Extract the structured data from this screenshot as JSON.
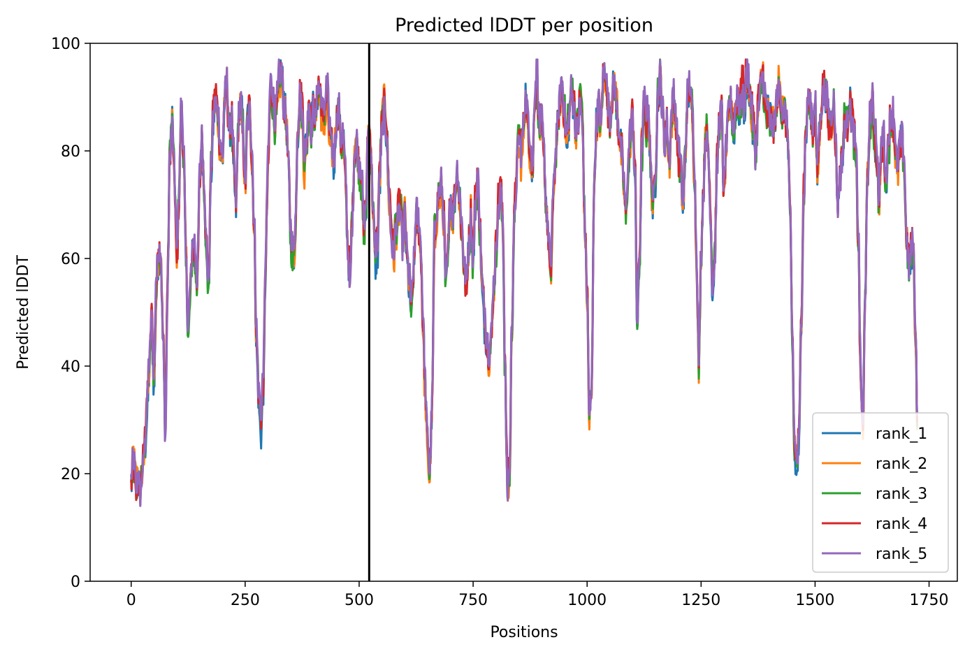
{
  "chart_data": {
    "type": "line",
    "title": "Predicted lDDT per position",
    "xlabel": "Positions",
    "ylabel": "Predicted lDDT",
    "xlim": [
      -90,
      1812
    ],
    "ylim": [
      0,
      100
    ],
    "xticks": [
      0,
      250,
      500,
      750,
      1000,
      1250,
      1500,
      1750
    ],
    "yticks": [
      0,
      20,
      40,
      60,
      80,
      100
    ],
    "grid": false,
    "legend_position": "lower-right",
    "chain_break_x": 522,
    "n_positions": 1725,
    "profile": {
      "x": [
        0,
        5,
        10,
        15,
        20,
        25,
        30,
        35,
        40,
        45,
        50,
        55,
        60,
        65,
        70,
        75,
        80,
        85,
        90,
        95,
        100,
        105,
        110,
        115,
        120,
        125,
        130,
        135,
        140,
        145,
        150,
        155,
        160,
        165,
        170,
        175,
        180,
        185,
        190,
        195,
        200,
        205,
        210,
        215,
        220,
        225,
        230,
        235,
        240,
        245,
        250,
        255,
        260,
        265,
        270,
        275,
        280,
        285,
        290,
        295,
        300,
        305,
        310,
        315,
        320,
        325,
        330,
        335,
        340,
        345,
        350,
        355,
        360,
        365,
        370,
        375,
        380,
        385,
        390,
        395,
        400,
        405,
        410,
        415,
        420,
        425,
        430,
        435,
        440,
        445,
        450,
        455,
        460,
        465,
        470,
        475,
        480,
        485,
        490,
        495,
        500,
        505,
        510,
        515,
        520,
        525,
        530,
        535,
        540,
        545,
        550,
        555,
        560,
        565,
        570,
        575,
        580,
        585,
        590,
        595,
        600,
        605,
        610,
        615,
        620,
        625,
        630,
        635,
        640,
        645,
        650,
        655,
        660,
        665,
        670,
        675,
        680,
        685,
        690,
        695,
        700,
        705,
        710,
        715,
        720,
        725,
        730,
        735,
        740,
        745,
        750,
        755,
        760,
        765,
        770,
        775,
        780,
        785,
        790,
        795,
        800,
        805,
        810,
        815,
        820,
        825,
        830,
        835,
        840,
        845,
        850,
        855,
        860,
        865,
        870,
        875,
        880,
        885,
        890,
        895,
        900,
        905,
        910,
        915,
        920,
        925,
        930,
        935,
        940,
        945,
        950,
        955,
        960,
        965,
        970,
        975,
        980,
        985,
        990,
        995,
        1000,
        1005,
        1010,
        1015,
        1020,
        1025,
        1030,
        1035,
        1040,
        1045,
        1050,
        1055,
        1060,
        1065,
        1070,
        1075,
        1080,
        1085,
        1090,
        1095,
        1100,
        1105,
        1110,
        1115,
        1120,
        1125,
        1130,
        1135,
        1140,
        1145,
        1150,
        1155,
        1160,
        1165,
        1170,
        1175,
        1180,
        1185,
        1190,
        1195,
        1200,
        1205,
        1210,
        1215,
        1220,
        1225,
        1230,
        1235,
        1240,
        1245,
        1250,
        1255,
        1260,
        1265,
        1270,
        1275,
        1280,
        1285,
        1290,
        1295,
        1300,
        1305,
        1310,
        1315,
        1320,
        1325,
        1330,
        1335,
        1340,
        1345,
        1350,
        1355,
        1360,
        1365,
        1370,
        1375,
        1380,
        1385,
        1390,
        1395,
        1400,
        1405,
        1410,
        1415,
        1420,
        1425,
        1430,
        1435,
        1440,
        1445,
        1450,
        1455,
        1460,
        1465,
        1470,
        1475,
        1480,
        1485,
        1490,
        1495,
        1500,
        1505,
        1510,
        1515,
        1520,
        1525,
        1530,
        1535,
        1540,
        1545,
        1550,
        1555,
        1560,
        1565,
        1570,
        1575,
        1580,
        1585,
        1590,
        1595,
        1600,
        1605,
        1610,
        1615,
        1620,
        1625,
        1630,
        1635,
        1640,
        1645,
        1650,
        1655,
        1660,
        1665,
        1670,
        1675,
        1680,
        1685,
        1690,
        1695,
        1700,
        1705,
        1710,
        1715,
        1720,
        1725
      ],
      "y": [
        18.0,
        22.0,
        17.0,
        19.0,
        17.0,
        21.0,
        25.0,
        33.0,
        40.0,
        48.0,
        38.0,
        55.0,
        62.0,
        60.0,
        45.0,
        28.0,
        55.0,
        80.0,
        85.0,
        75.0,
        60.0,
        72.0,
        88.0,
        80.0,
        60.0,
        48.0,
        55.0,
        62.0,
        60.0,
        55.0,
        74.0,
        82.0,
        74.0,
        62.0,
        55.0,
        76.0,
        86.0,
        90.0,
        86.0,
        81.0,
        78.0,
        90.0,
        92.0,
        84.0,
        86.0,
        77.0,
        70.0,
        85.0,
        90.0,
        85.0,
        74.0,
        86.0,
        88.0,
        78.0,
        65.0,
        45.0,
        35.0,
        30.0,
        38.0,
        60.0,
        78.0,
        92.0,
        90.0,
        85.0,
        88.0,
        93.0,
        94.0,
        88.0,
        86.0,
        78.0,
        65.0,
        60.0,
        65.0,
        84.0,
        90.0,
        88.0,
        78.0,
        82.0,
        90.0,
        85.0,
        88.0,
        86.0,
        92.0,
        90.0,
        85.0,
        88.0,
        91.0,
        84.0,
        80.0,
        78.0,
        85.0,
        88.0,
        80.0,
        82.0,
        75.0,
        62.0,
        56.0,
        68.0,
        80.0,
        82.0,
        78.0,
        76.0,
        65.0,
        70.0,
        84.0,
        82.0,
        70.0,
        60.0,
        62.0,
        75.0,
        85.0,
        88.0,
        84.0,
        72.0,
        66.0,
        60.0,
        65.0,
        68.0,
        70.0,
        64.0,
        68.0,
        60.0,
        55.0,
        50.0,
        58.0,
        68.0,
        66.0,
        62.0,
        48.0,
        35.0,
        25.0,
        20.0,
        32.0,
        62.0,
        68.0,
        72.0,
        74.0,
        68.0,
        55.0,
        60.0,
        70.0,
        68.0,
        72.0,
        76.0,
        70.0,
        64.0,
        58.0,
        54.0,
        62.0,
        68.0,
        60.0,
        70.0,
        74.0,
        65.0,
        55.0,
        50.0,
        45.0,
        42.0,
        44.0,
        55.0,
        62.0,
        70.0,
        72.0,
        67.0,
        40.0,
        18.0,
        20.0,
        48.0,
        66.0,
        75.0,
        82.0,
        80.0,
        84.0,
        90.0,
        86.0,
        80.0,
        76.0,
        90.0,
        92.0,
        84.0,
        86.0,
        80.0,
        70.0,
        64.0,
        56.0,
        70.0,
        78.0,
        85.0,
        90.0,
        93.0,
        88.0,
        82.0,
        86.0,
        92.0,
        90.0,
        84.0,
        85.0,
        90.0,
        84.0,
        66.0,
        52.0,
        30.0,
        36.0,
        72.0,
        85.0,
        88.0,
        84.0,
        92.0,
        94.0,
        88.0,
        85.0,
        90.0,
        93.0,
        88.0,
        84.0,
        80.0,
        74.0,
        68.0,
        76.0,
        82.0,
        86.0,
        76.0,
        50.0,
        60.0,
        80.0,
        88.0,
        85.0,
        86.0,
        76.0,
        70.0,
        76.0,
        90.0,
        94.0,
        88.0,
        80.0,
        84.0,
        78.0,
        86.0,
        90.0,
        85.0,
        80.0,
        76.0,
        70.0,
        78.0,
        90.0,
        92.0,
        88.0,
        78.0,
        60.0,
        40.0,
        60.0,
        72.0,
        84.0,
        80.0,
        70.0,
        56.0,
        60.0,
        78.0,
        86.0,
        88.0,
        72.0,
        80.0,
        86.0,
        90.0,
        84.0,
        86.0,
        90.0,
        88.0,
        92.0,
        90.0,
        94.0,
        93.0,
        88.0,
        84.0,
        80.0,
        88.0,
        92.0,
        95.0,
        90.0,
        88.0,
        86.0,
        86.0,
        84.0,
        88.0,
        92.0,
        90.0,
        88.0,
        86.0,
        84.0,
        70.0,
        45.0,
        25.0,
        22.0,
        28.0,
        50.0,
        72.0,
        84.0,
        90.0,
        88.0,
        84.0,
        88.0,
        76.0,
        84.0,
        90.0,
        92.0,
        90.0,
        86.0,
        84.0,
        88.0,
        82.0,
        70.0,
        76.0,
        80.0,
        86.0,
        85.0,
        90.0,
        88.0,
        84.0,
        78.0,
        64.0,
        38.0,
        28.0,
        55.0,
        75.0,
        86.0,
        88.0,
        84.0,
        80.0,
        72.0,
        80.0,
        84.0,
        75.0,
        80.0,
        84.0,
        86.0,
        82.0,
        76.0,
        80.0,
        82.0,
        78.0,
        65.0,
        58.0,
        60.0,
        64.0,
        48.0,
        28.0
      ]
    },
    "series": [
      {
        "name": "rank_1",
        "color": "#1f77b4"
      },
      {
        "name": "rank_2",
        "color": "#ff7f0e"
      },
      {
        "name": "rank_3",
        "color": "#2ca02c"
      },
      {
        "name": "rank_4",
        "color": "#d62728"
      },
      {
        "name": "rank_5",
        "color": "#9467bd"
      }
    ]
  }
}
